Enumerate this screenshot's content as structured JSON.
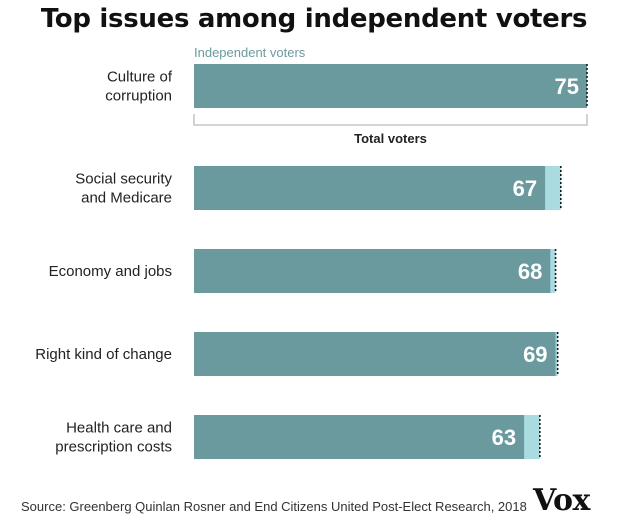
{
  "source": "Source: Greenberg Quinlan Rosner and End Citizens United Post-Elect Research, 2018",
  "logo": "Vox",
  "chart_data": {
    "type": "bar",
    "orientation": "horizontal",
    "title": "Top issues among independent voters",
    "categories": [
      [
        "Culture of",
        "corruption"
      ],
      [
        "Social security",
        "and Medicare"
      ],
      [
        "Economy and jobs"
      ],
      [
        "Right kind of change"
      ],
      [
        "Health care and",
        "prescription costs"
      ]
    ],
    "series": [
      {
        "name": "Independent voters",
        "values": [
          75,
          67,
          68,
          69,
          63
        ],
        "color": "#6b9a9e"
      },
      {
        "name": "Total voters",
        "values": [
          75,
          70,
          69,
          69.4,
          66
        ],
        "color": "#a9dbe1",
        "style": "dotted-marker"
      }
    ],
    "data_labels": [
      "75",
      "67",
      "68",
      "69",
      "63"
    ],
    "xlim": [
      0,
      75
    ],
    "grid": false,
    "legend": "inline-annotations"
  }
}
